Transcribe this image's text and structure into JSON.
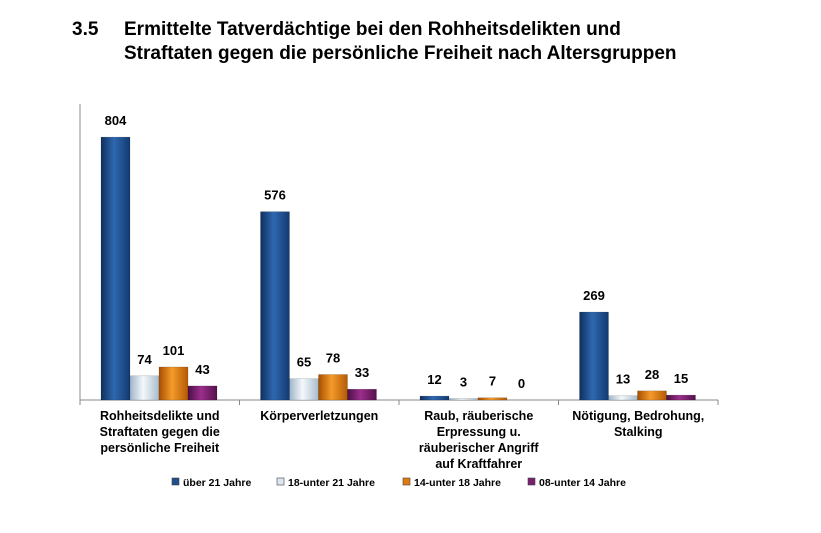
{
  "header": {
    "number": "3.5",
    "title_line1": "Ermittelte Tatverdächtige bei den Rohheitsdelikten und",
    "title_line2": "Straftaten gegen die persönliche Freiheit nach Altersgruppen"
  },
  "chart_data": {
    "type": "bar",
    "title": "Ermittelte Tatverdächtige bei den Rohheitsdelikten und Straftaten gegen die persönliche Freiheit nach Altersgruppen",
    "categories": [
      [
        "Rohheitsdelikte und",
        "Straftaten gegen die",
        "persönliche Freiheit"
      ],
      [
        "Körperverletzungen"
      ],
      [
        "Raub, räuberische",
        "Erpressung u.",
        "räuberischer Angriff",
        "auf Kraftfahrer"
      ],
      [
        "Nötigung, Bedrohung,",
        "Stalking"
      ]
    ],
    "series": [
      {
        "name": "über 21 Jahre",
        "color": "#1f4e8c",
        "values": [
          804,
          576,
          12,
          269
        ]
      },
      {
        "name": "18-unter 21 Jahre",
        "color": "#dce6f0",
        "values": [
          74,
          65,
          3,
          13
        ]
      },
      {
        "name": "14-unter 18 Jahre",
        "color": "#e07b10",
        "values": [
          101,
          78,
          7,
          28
        ]
      },
      {
        "name": "08-unter 14 Jahre",
        "color": "#7a1f6e",
        "values": [
          43,
          33,
          0,
          15
        ]
      }
    ],
    "ylim": [
      0,
      900
    ],
    "legend_position": "bottom",
    "grid": false
  }
}
